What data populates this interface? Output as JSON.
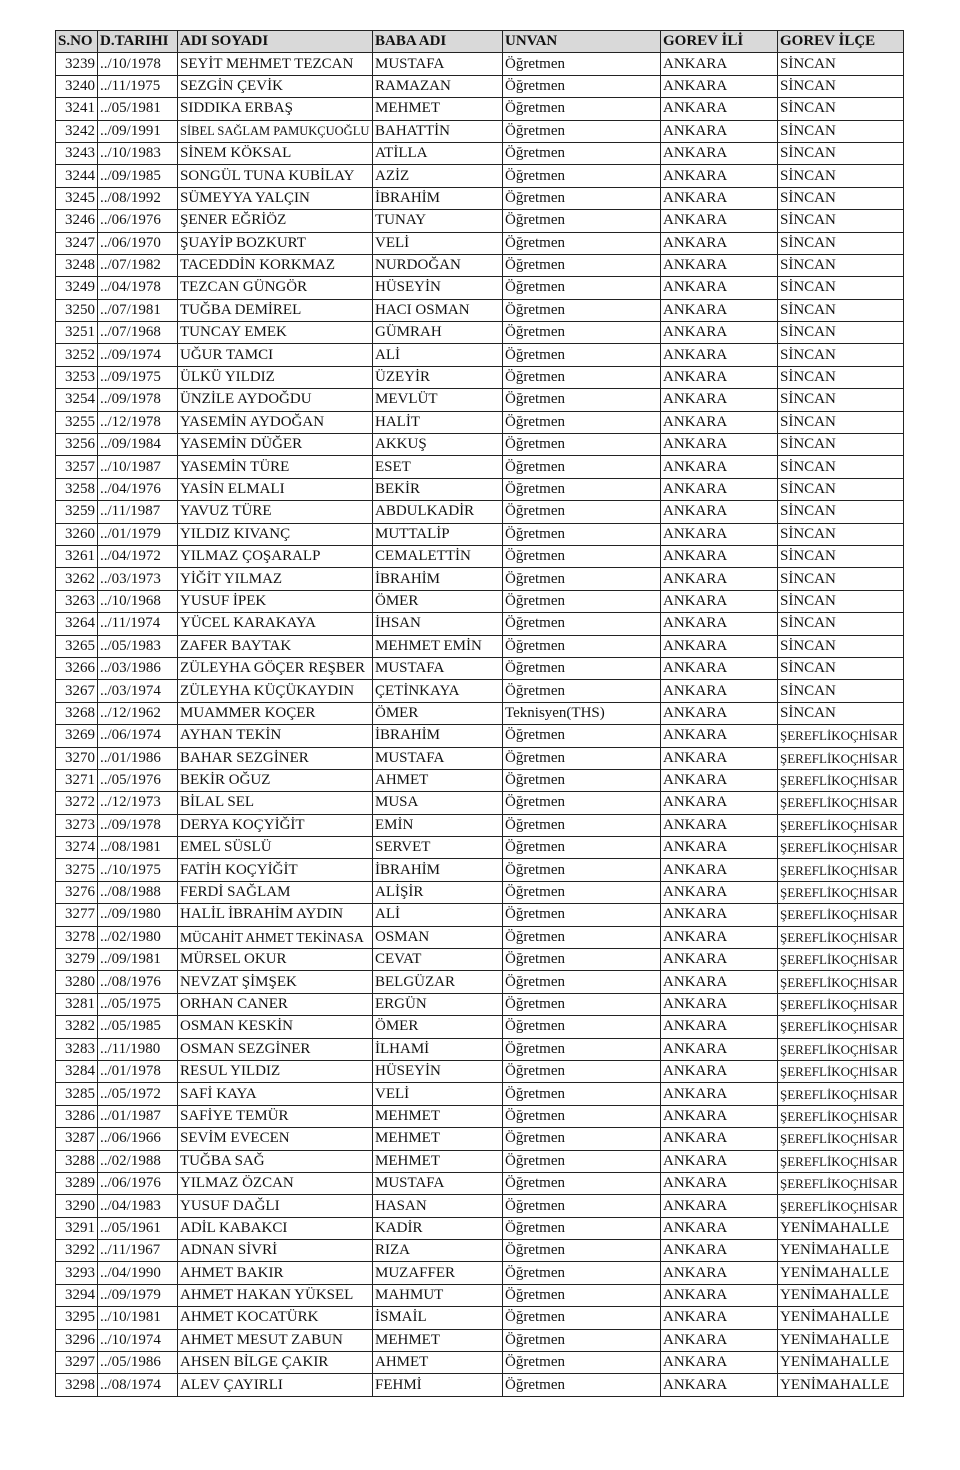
{
  "table": {
    "header": [
      "S.NO",
      "D.TARIHI",
      "ADI SOYADI",
      "BABA ADI",
      "UNVAN",
      "GOREV İLİ",
      "GOREV İLÇE"
    ],
    "rows": [
      [
        "3239",
        "../10/1978",
        "SEYİT MEHMET TEZCAN",
        "MUSTAFA",
        "Öğretmen",
        "ANKARA",
        "SİNCAN"
      ],
      [
        "3240",
        "../11/1975",
        "SEZGİN ÇEVİK",
        "RAMAZAN",
        "Öğretmen",
        "ANKARA",
        "SİNCAN"
      ],
      [
        "3241",
        "../05/1981",
        "SIDDIKA ERBAŞ",
        "MEHMET",
        "Öğretmen",
        "ANKARA",
        "SİNCAN"
      ],
      [
        "3242",
        "../09/1991",
        "SİBEL SAĞLAM PAMUKÇUOĞLU",
        "BAHATTİN",
        "Öğretmen",
        "ANKARA",
        "SİNCAN"
      ],
      [
        "3243",
        "../10/1983",
        "SİNEM KÖKSAL",
        "ATİLLA",
        "Öğretmen",
        "ANKARA",
        "SİNCAN"
      ],
      [
        "3244",
        "../09/1985",
        "SONGÜL TUNA KUBİLAY",
        "AZİZ",
        "Öğretmen",
        "ANKARA",
        "SİNCAN"
      ],
      [
        "3245",
        "../08/1992",
        "SÜMEYYA YALÇIN",
        "İBRAHİM",
        "Öğretmen",
        "ANKARA",
        "SİNCAN"
      ],
      [
        "3246",
        "../06/1976",
        "ŞENER EĞRİÖZ",
        "TUNAY",
        "Öğretmen",
        "ANKARA",
        "SİNCAN"
      ],
      [
        "3247",
        "../06/1970",
        "ŞUAYİP BOZKURT",
        "VELİ",
        "Öğretmen",
        "ANKARA",
        "SİNCAN"
      ],
      [
        "3248",
        "../07/1982",
        "TACEDDİN KORKMAZ",
        "NURDOĞAN",
        "Öğretmen",
        "ANKARA",
        "SİNCAN"
      ],
      [
        "3249",
        "../04/1978",
        "TEZCAN GÜNGÖR",
        "HÜSEYİN",
        "Öğretmen",
        "ANKARA",
        "SİNCAN"
      ],
      [
        "3250",
        "../07/1981",
        "TUĞBA DEMİREL",
        "HACI OSMAN",
        "Öğretmen",
        "ANKARA",
        "SİNCAN"
      ],
      [
        "3251",
        "../07/1968",
        "TUNCAY EMEK",
        "GÜMRAH",
        "Öğretmen",
        "ANKARA",
        "SİNCAN"
      ],
      [
        "3252",
        "../09/1974",
        "UĞUR TAMCI",
        "ALİ",
        "Öğretmen",
        "ANKARA",
        "SİNCAN"
      ],
      [
        "3253",
        "../09/1975",
        "ÜLKÜ YILDIZ",
        "ÜZEYİR",
        "Öğretmen",
        "ANKARA",
        "SİNCAN"
      ],
      [
        "3254",
        "../09/1978",
        "ÜNZİLE AYDOĞDU",
        "MEVLÜT",
        "Öğretmen",
        "ANKARA",
        "SİNCAN"
      ],
      [
        "3255",
        "../12/1978",
        "YASEMİN AYDOĞAN",
        "HALİT",
        "Öğretmen",
        "ANKARA",
        "SİNCAN"
      ],
      [
        "3256",
        "../09/1984",
        "YASEMİN DÜĞER",
        "AKKUŞ",
        "Öğretmen",
        "ANKARA",
        "SİNCAN"
      ],
      [
        "3257",
        "../10/1987",
        "YASEMİN TÜRE",
        "ESET",
        "Öğretmen",
        "ANKARA",
        "SİNCAN"
      ],
      [
        "3258",
        "../04/1976",
        "YASİN ELMALI",
        "BEKİR",
        "Öğretmen",
        "ANKARA",
        "SİNCAN"
      ],
      [
        "3259",
        "../11/1987",
        "YAVUZ TÜRE",
        "ABDULKADİR",
        "Öğretmen",
        "ANKARA",
        "SİNCAN"
      ],
      [
        "3260",
        "../01/1979",
        "YILDIZ KIVANÇ",
        "MUTTALİP",
        "Öğretmen",
        "ANKARA",
        "SİNCAN"
      ],
      [
        "3261",
        "../04/1972",
        "YILMAZ ÇOŞARALP",
        "CEMALETTİN",
        "Öğretmen",
        "ANKARA",
        "SİNCAN"
      ],
      [
        "3262",
        "../03/1973",
        "YİĞİT YILMAZ",
        "İBRAHİM",
        "Öğretmen",
        "ANKARA",
        "SİNCAN"
      ],
      [
        "3263",
        "../10/1968",
        "YUSUF İPEK",
        "ÖMER",
        "Öğretmen",
        "ANKARA",
        "SİNCAN"
      ],
      [
        "3264",
        "../11/1974",
        "YÜCEL KARAKAYA",
        "İHSAN",
        "Öğretmen",
        "ANKARA",
        "SİNCAN"
      ],
      [
        "3265",
        "../05/1983",
        "ZAFER BAYTAK",
        "MEHMET EMİN",
        "Öğretmen",
        "ANKARA",
        "SİNCAN"
      ],
      [
        "3266",
        "../03/1986",
        "ZÜLEYHA GÖÇER REŞBER",
        "MUSTAFA",
        "Öğretmen",
        "ANKARA",
        "SİNCAN"
      ],
      [
        "3267",
        "../03/1974",
        "ZÜLEYHA KÜÇÜKAYDIN",
        "ÇETİNKAYA",
        "Öğretmen",
        "ANKARA",
        "SİNCAN"
      ],
      [
        "3268",
        "../12/1962",
        "MUAMMER KOÇER",
        "ÖMER",
        "Teknisyen(THS)",
        "ANKARA",
        "SİNCAN"
      ],
      [
        "3269",
        "../06/1974",
        "AYHAN TEKİN",
        "İBRAHİM",
        "Öğretmen",
        "ANKARA",
        "ŞEREFLİKOÇHİSAR"
      ],
      [
        "3270",
        "../01/1986",
        "BAHAR SEZGİNER",
        "MUSTAFA",
        "Öğretmen",
        "ANKARA",
        "ŞEREFLİKOÇHİSAR"
      ],
      [
        "3271",
        "../05/1976",
        "BEKİR OĞUZ",
        "AHMET",
        "Öğretmen",
        "ANKARA",
        "ŞEREFLİKOÇHİSAR"
      ],
      [
        "3272",
        "../12/1973",
        "BİLAL SEL",
        "MUSA",
        "Öğretmen",
        "ANKARA",
        "ŞEREFLİKOÇHİSAR"
      ],
      [
        "3273",
        "../09/1978",
        "DERYA KOÇYİĞİT",
        "EMİN",
        "Öğretmen",
        "ANKARA",
        "ŞEREFLİKOÇHİSAR"
      ],
      [
        "3274",
        "../08/1981",
        "EMEL SÜSLÜ",
        "SERVET",
        "Öğretmen",
        "ANKARA",
        "ŞEREFLİKOÇHİSAR"
      ],
      [
        "3275",
        "../10/1975",
        "FATİH KOÇYİĞİT",
        "İBRAHİM",
        "Öğretmen",
        "ANKARA",
        "ŞEREFLİKOÇHİSAR"
      ],
      [
        "3276",
        "../08/1988",
        "FERDİ SAĞLAM",
        "ALİŞİR",
        "Öğretmen",
        "ANKARA",
        "ŞEREFLİKOÇHİSAR"
      ],
      [
        "3277",
        "../09/1980",
        "HALİL İBRAHİM AYDIN",
        "ALİ",
        "Öğretmen",
        "ANKARA",
        "ŞEREFLİKOÇHİSAR"
      ],
      [
        "3278",
        "../02/1980",
        "MÜCAHİT AHMET TEKİNASA",
        "OSMAN",
        "Öğretmen",
        "ANKARA",
        "ŞEREFLİKOÇHİSAR"
      ],
      [
        "3279",
        "../09/1981",
        "MÜRSEL OKUR",
        "CEVAT",
        "Öğretmen",
        "ANKARA",
        "ŞEREFLİKOÇHİSAR"
      ],
      [
        "3280",
        "../08/1976",
        "NEVZAT ŞİMŞEK",
        "BELGÜZAR",
        "Öğretmen",
        "ANKARA",
        "ŞEREFLİKOÇHİSAR"
      ],
      [
        "3281",
        "../05/1975",
        "ORHAN CANER",
        "ERGÜN",
        "Öğretmen",
        "ANKARA",
        "ŞEREFLİKOÇHİSAR"
      ],
      [
        "3282",
        "../05/1985",
        "OSMAN KESKİN",
        "ÖMER",
        "Öğretmen",
        "ANKARA",
        "ŞEREFLİKOÇHİSAR"
      ],
      [
        "3283",
        "../11/1980",
        "OSMAN SEZGİNER",
        "İLHAMİ",
        "Öğretmen",
        "ANKARA",
        "ŞEREFLİKOÇHİSAR"
      ],
      [
        "3284",
        "../01/1978",
        "RESUL YILDIZ",
        "HÜSEYİN",
        "Öğretmen",
        "ANKARA",
        "ŞEREFLİKOÇHİSAR"
      ],
      [
        "3285",
        "../05/1972",
        "SAFİ KAYA",
        "VELİ",
        "Öğretmen",
        "ANKARA",
        "ŞEREFLİKOÇHİSAR"
      ],
      [
        "3286",
        "../01/1987",
        "SAFİYE TEMÜR",
        "MEHMET",
        "Öğretmen",
        "ANKARA",
        "ŞEREFLİKOÇHİSAR"
      ],
      [
        "3287",
        "../06/1966",
        "SEVİM EVECEN",
        "MEHMET",
        "Öğretmen",
        "ANKARA",
        "ŞEREFLİKOÇHİSAR"
      ],
      [
        "3288",
        "../02/1988",
        "TUĞBA SAĞ",
        "MEHMET",
        "Öğretmen",
        "ANKARA",
        "ŞEREFLİKOÇHİSAR"
      ],
      [
        "3289",
        "../06/1976",
        "YILMAZ ÖZCAN",
        "MUSTAFA",
        "Öğretmen",
        "ANKARA",
        "ŞEREFLİKOÇHİSAR"
      ],
      [
        "3290",
        "../04/1983",
        "YUSUF DAĞLI",
        "HASAN",
        "Öğretmen",
        "ANKARA",
        "ŞEREFLİKOÇHİSAR"
      ],
      [
        "3291",
        "../05/1961",
        "ADİL KABAKCI",
        "KADİR",
        "Öğretmen",
        "ANKARA",
        "YENİMAHALLE"
      ],
      [
        "3292",
        "../11/1967",
        "ADNAN SİVRİ",
        "RIZA",
        "Öğretmen",
        "ANKARA",
        "YENİMAHALLE"
      ],
      [
        "3293",
        "../04/1990",
        "AHMET BAKIR",
        "MUZAFFER",
        "Öğretmen",
        "ANKARA",
        "YENİMAHALLE"
      ],
      [
        "3294",
        "../09/1979",
        "AHMET HAKAN YÜKSEL",
        "MAHMUT",
        "Öğretmen",
        "ANKARA",
        "YENİMAHALLE"
      ],
      [
        "3295",
        "../10/1981",
        "AHMET KOCATÜRK",
        "İSMAİL",
        "Öğretmen",
        "ANKARA",
        "YENİMAHALLE"
      ],
      [
        "3296",
        "../10/1974",
        "AHMET MESUT ZABUN",
        "MEHMET",
        "Öğretmen",
        "ANKARA",
        "YENİMAHALLE"
      ],
      [
        "3297",
        "../05/1986",
        "AHSEN BİLGE ÇAKIR",
        "AHMET",
        "Öğretmen",
        "ANKARA",
        "YENİMAHALLE"
      ],
      [
        "3298",
        "../08/1974",
        "ALEV ÇAYIRLI",
        "FEHMİ",
        "Öğretmen",
        "ANKARA",
        "YENİMAHALLE"
      ]
    ]
  }
}
